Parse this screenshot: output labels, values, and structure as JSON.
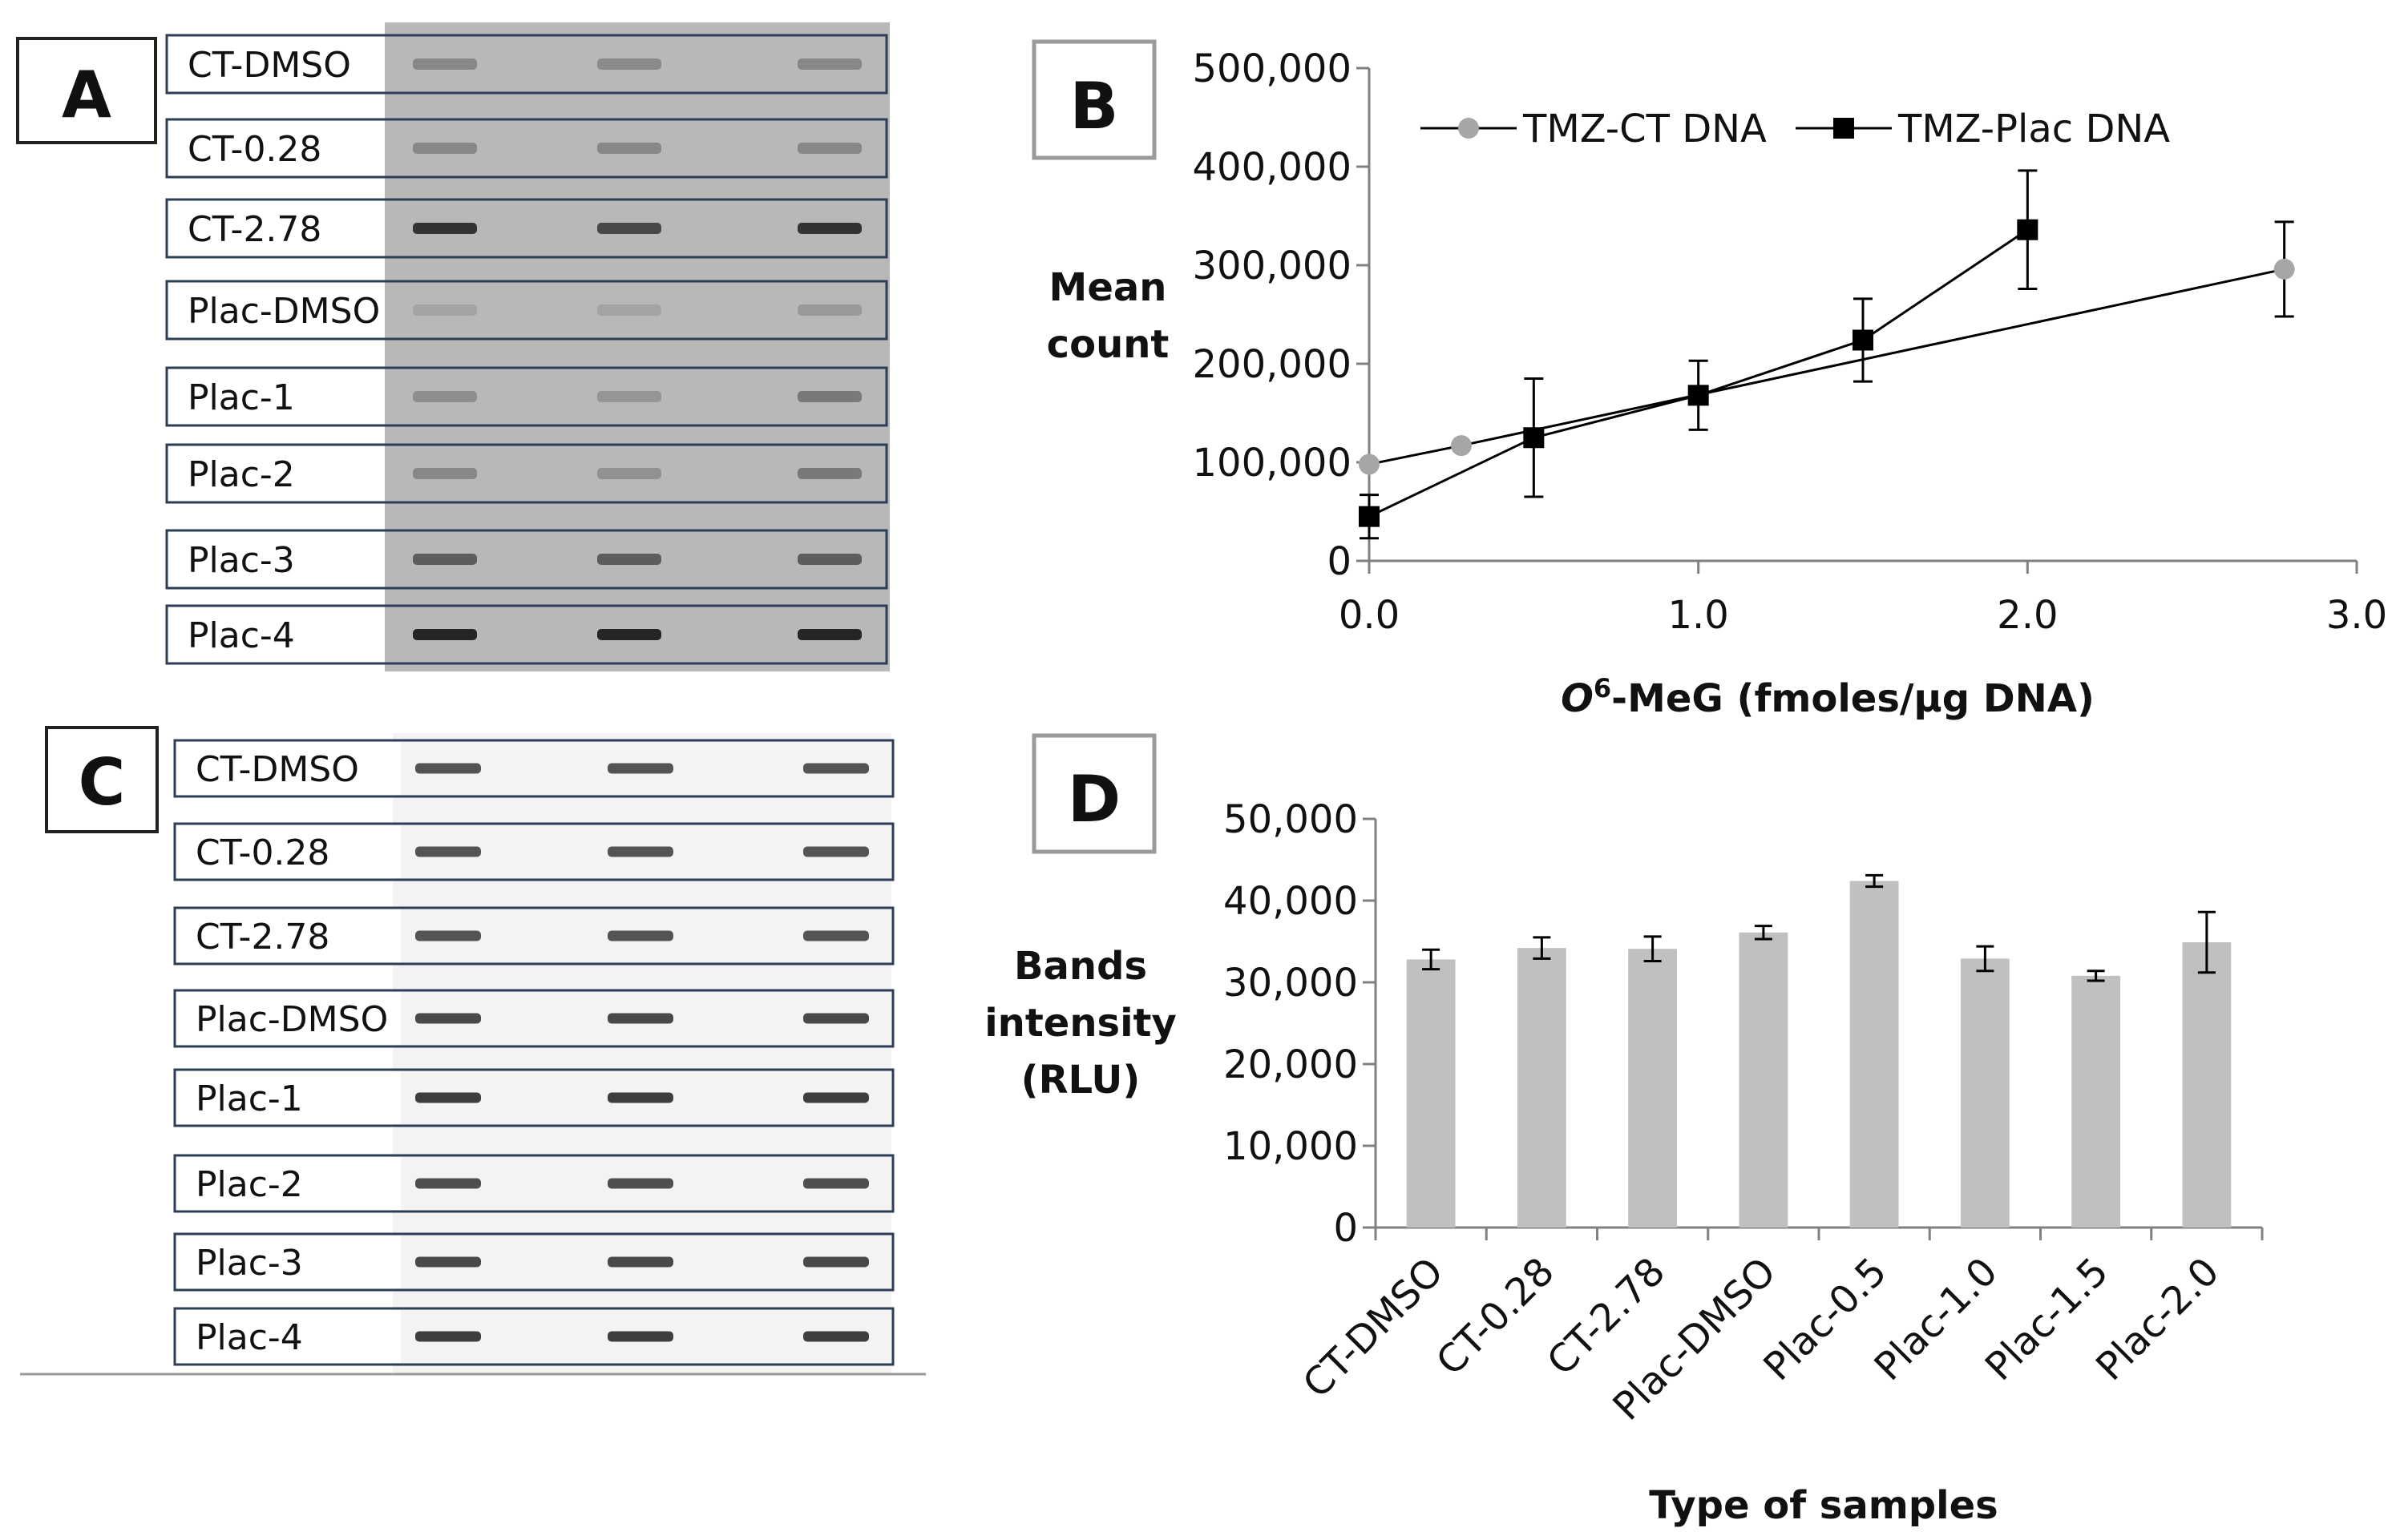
{
  "panels": {
    "A": {
      "letter": "A",
      "lanes": [
        "CT-DMSO",
        "CT-0.28",
        "CT-2.78",
        "Plac-DMSO",
        "Plac-1",
        "Plac-2",
        "Plac-3",
        "Plac-4"
      ],
      "band_intensity": [
        [
          0.25,
          0.22,
          0.25
        ],
        [
          0.25,
          0.25,
          0.25
        ],
        [
          0.85,
          0.7,
          0.85
        ],
        [
          0.05,
          0.05,
          0.12
        ],
        [
          0.2,
          0.15,
          0.35
        ],
        [
          0.25,
          0.18,
          0.35
        ],
        [
          0.55,
          0.55,
          0.55
        ],
        [
          0.95,
          0.95,
          0.95
        ]
      ]
    },
    "C": {
      "letter": "C",
      "lanes": [
        "CT-DMSO",
        "CT-0.28",
        "CT-2.78",
        "Plac-DMSO",
        "Plac-1",
        "Plac-2",
        "Plac-3",
        "Plac-4"
      ],
      "band_intensity": [
        [
          0.6,
          0.6,
          0.6
        ],
        [
          0.6,
          0.6,
          0.6
        ],
        [
          0.6,
          0.6,
          0.6
        ],
        [
          0.7,
          0.7,
          0.7
        ],
        [
          0.8,
          0.8,
          0.8
        ],
        [
          0.65,
          0.65,
          0.65
        ],
        [
          0.7,
          0.7,
          0.7
        ],
        [
          0.8,
          0.8,
          0.8
        ]
      ]
    },
    "B": {
      "letter": "B"
    },
    "D": {
      "letter": "D"
    }
  },
  "chart_data": [
    {
      "panel": "B",
      "type": "line",
      "xlabel_italic": "O",
      "xlabel_sup": "6",
      "xlabel_rest": "-MeG (fmoles/µg DNA)",
      "ylabel_line1": "Mean",
      "ylabel_line2": "count",
      "xlim": [
        0,
        3
      ],
      "ylim": [
        0,
        500000
      ],
      "xticks": [
        0,
        1,
        2,
        3
      ],
      "xtick_labels": [
        "0.0",
        "1.0",
        "2.0",
        "3.0"
      ],
      "yticks": [
        0,
        100000,
        200000,
        300000,
        400000,
        500000
      ],
      "ytick_labels": [
        "0",
        "100,000",
        "200,000",
        "300,000",
        "400,000",
        "500,000"
      ],
      "legend_position": "top",
      "series": [
        {
          "name": "TMZ-CT DNA",
          "marker": "circle",
          "color": "#a6a6a6",
          "x": [
            0.0,
            0.28,
            2.78
          ],
          "y": [
            98000,
            117000,
            296000
          ],
          "err": [
            0,
            0,
            48000
          ]
        },
        {
          "name": "TMZ-Plac DNA",
          "marker": "square",
          "color": "#000000",
          "x": [
            0.0,
            0.5,
            1.0,
            1.5,
            2.0
          ],
          "y": [
            45000,
            125000,
            168000,
            224000,
            336000
          ],
          "err": [
            22000,
            60000,
            35000,
            42000,
            60000
          ]
        }
      ]
    },
    {
      "panel": "D",
      "type": "bar",
      "xlabel": "Type of samples",
      "ylabel_line1": "Bands",
      "ylabel_line2": "intensity",
      "ylabel_line3": "(RLU)",
      "ylim": [
        0,
        50000
      ],
      "yticks": [
        0,
        10000,
        20000,
        30000,
        40000,
        50000
      ],
      "ytick_labels": [
        "0",
        "10,000",
        "20,000",
        "30,000",
        "40,000",
        "50,000"
      ],
      "bar_color": "#c0c0c0",
      "categories": [
        "CT-DMSO",
        "CT-0.28",
        "CT-2.78",
        "Plac-DMSO",
        "Plac-0.5",
        "Plac-1.0",
        "Plac-1.5",
        "Plac-2.0"
      ],
      "values": [
        32800,
        34200,
        34100,
        36100,
        42400,
        32900,
        30800,
        34900
      ],
      "err": [
        1200,
        1300,
        1500,
        800,
        700,
        1500,
        600,
        3700
      ]
    }
  ]
}
